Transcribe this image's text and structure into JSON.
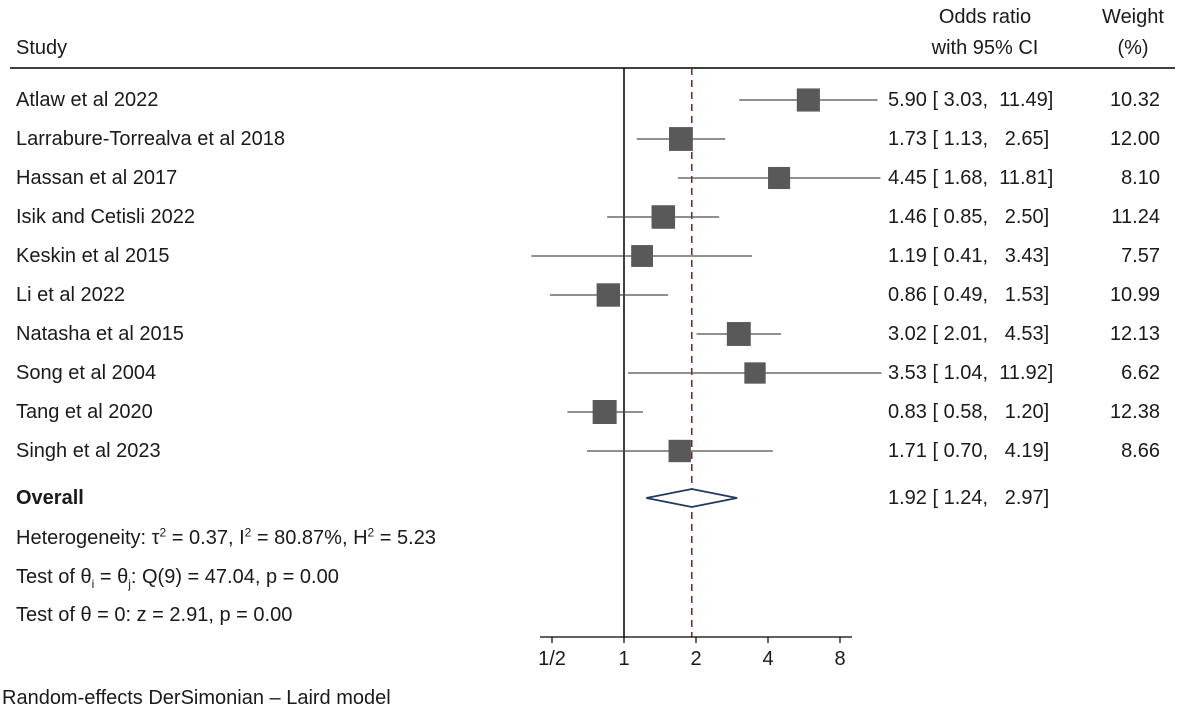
{
  "headers": {
    "study": "Study",
    "or_line1": "Odds ratio",
    "or_line2": "with 95% CI",
    "weight_line1": "Weight",
    "weight_line2": "(%)"
  },
  "chart_data": {
    "type": "forest",
    "scale": "log",
    "measure": "Odds ratio",
    "x_ticks": [
      {
        "label": "1/2",
        "value": 0.5
      },
      {
        "label": "1",
        "value": 1
      },
      {
        "label": "2",
        "value": 2
      },
      {
        "label": "4",
        "value": 4
      },
      {
        "label": "8",
        "value": 8
      }
    ],
    "null_line": 1,
    "studies": [
      {
        "name": "Atlaw et al 2022",
        "or": 5.9,
        "lo": 3.03,
        "hi": 11.49,
        "ci_text": "5.90 [ 3.03,  11.49]",
        "weight": "10.32"
      },
      {
        "name": "Larrabure-Torrealva et al 2018",
        "or": 1.73,
        "lo": 1.13,
        "hi": 2.65,
        "ci_text": "1.73 [ 1.13,   2.65]",
        "weight": "12.00"
      },
      {
        "name": "Hassan et al 2017",
        "or": 4.45,
        "lo": 1.68,
        "hi": 11.81,
        "ci_text": "4.45 [ 1.68,  11.81]",
        "weight": "8.10"
      },
      {
        "name": "Isik and Cetisli 2022",
        "or": 1.46,
        "lo": 0.85,
        "hi": 2.5,
        "ci_text": "1.46 [ 0.85,   2.50]",
        "weight": "11.24"
      },
      {
        "name": "Keskin et al 2015",
        "or": 1.19,
        "lo": 0.41,
        "hi": 3.43,
        "ci_text": "1.19 [ 0.41,   3.43]",
        "weight": "7.57"
      },
      {
        "name": "Li et al 2022",
        "or": 0.86,
        "lo": 0.49,
        "hi": 1.53,
        "ci_text": "0.86 [ 0.49,   1.53]",
        "weight": "10.99"
      },
      {
        "name": "Natasha et al 2015",
        "or": 3.02,
        "lo": 2.01,
        "hi": 4.53,
        "ci_text": "3.02 [ 2.01,   4.53]",
        "weight": "12.13"
      },
      {
        "name": "Song et al 2004",
        "or": 3.53,
        "lo": 1.04,
        "hi": 11.92,
        "ci_text": "3.53 [ 1.04,  11.92]",
        "weight": "6.62"
      },
      {
        "name": "Tang et al 2020",
        "or": 0.83,
        "lo": 0.58,
        "hi": 1.2,
        "ci_text": "0.83 [ 0.58,   1.20]",
        "weight": "12.38"
      },
      {
        "name": "Singh et al 2023",
        "or": 1.71,
        "lo": 0.7,
        "hi": 4.19,
        "ci_text": "1.71 [ 0.70,   4.19]",
        "weight": "8.66"
      }
    ],
    "overall": {
      "name": "Overall",
      "or": 1.92,
      "lo": 1.24,
      "hi": 2.97,
      "ci_text": "1.92 [ 1.24,   2.97]"
    },
    "stats": {
      "heterogeneity_prefix": "Heterogeneity: τ",
      "tau2": "0.37",
      "i2": "80.87%",
      "h2": "5.23",
      "test1_q": "47.04",
      "test1_df": "9",
      "test1_p": "0.00",
      "test2_z": "2.91",
      "test2_p": "0.00"
    },
    "footnote": "Random-effects DerSimonian – Laird model"
  },
  "colors": {
    "marker": "#595959",
    "overall_diamond": "#1f3a5f",
    "null_line": "#000000",
    "overall_line": "#8b1a1a",
    "ci_line": "#4d4d4d"
  }
}
